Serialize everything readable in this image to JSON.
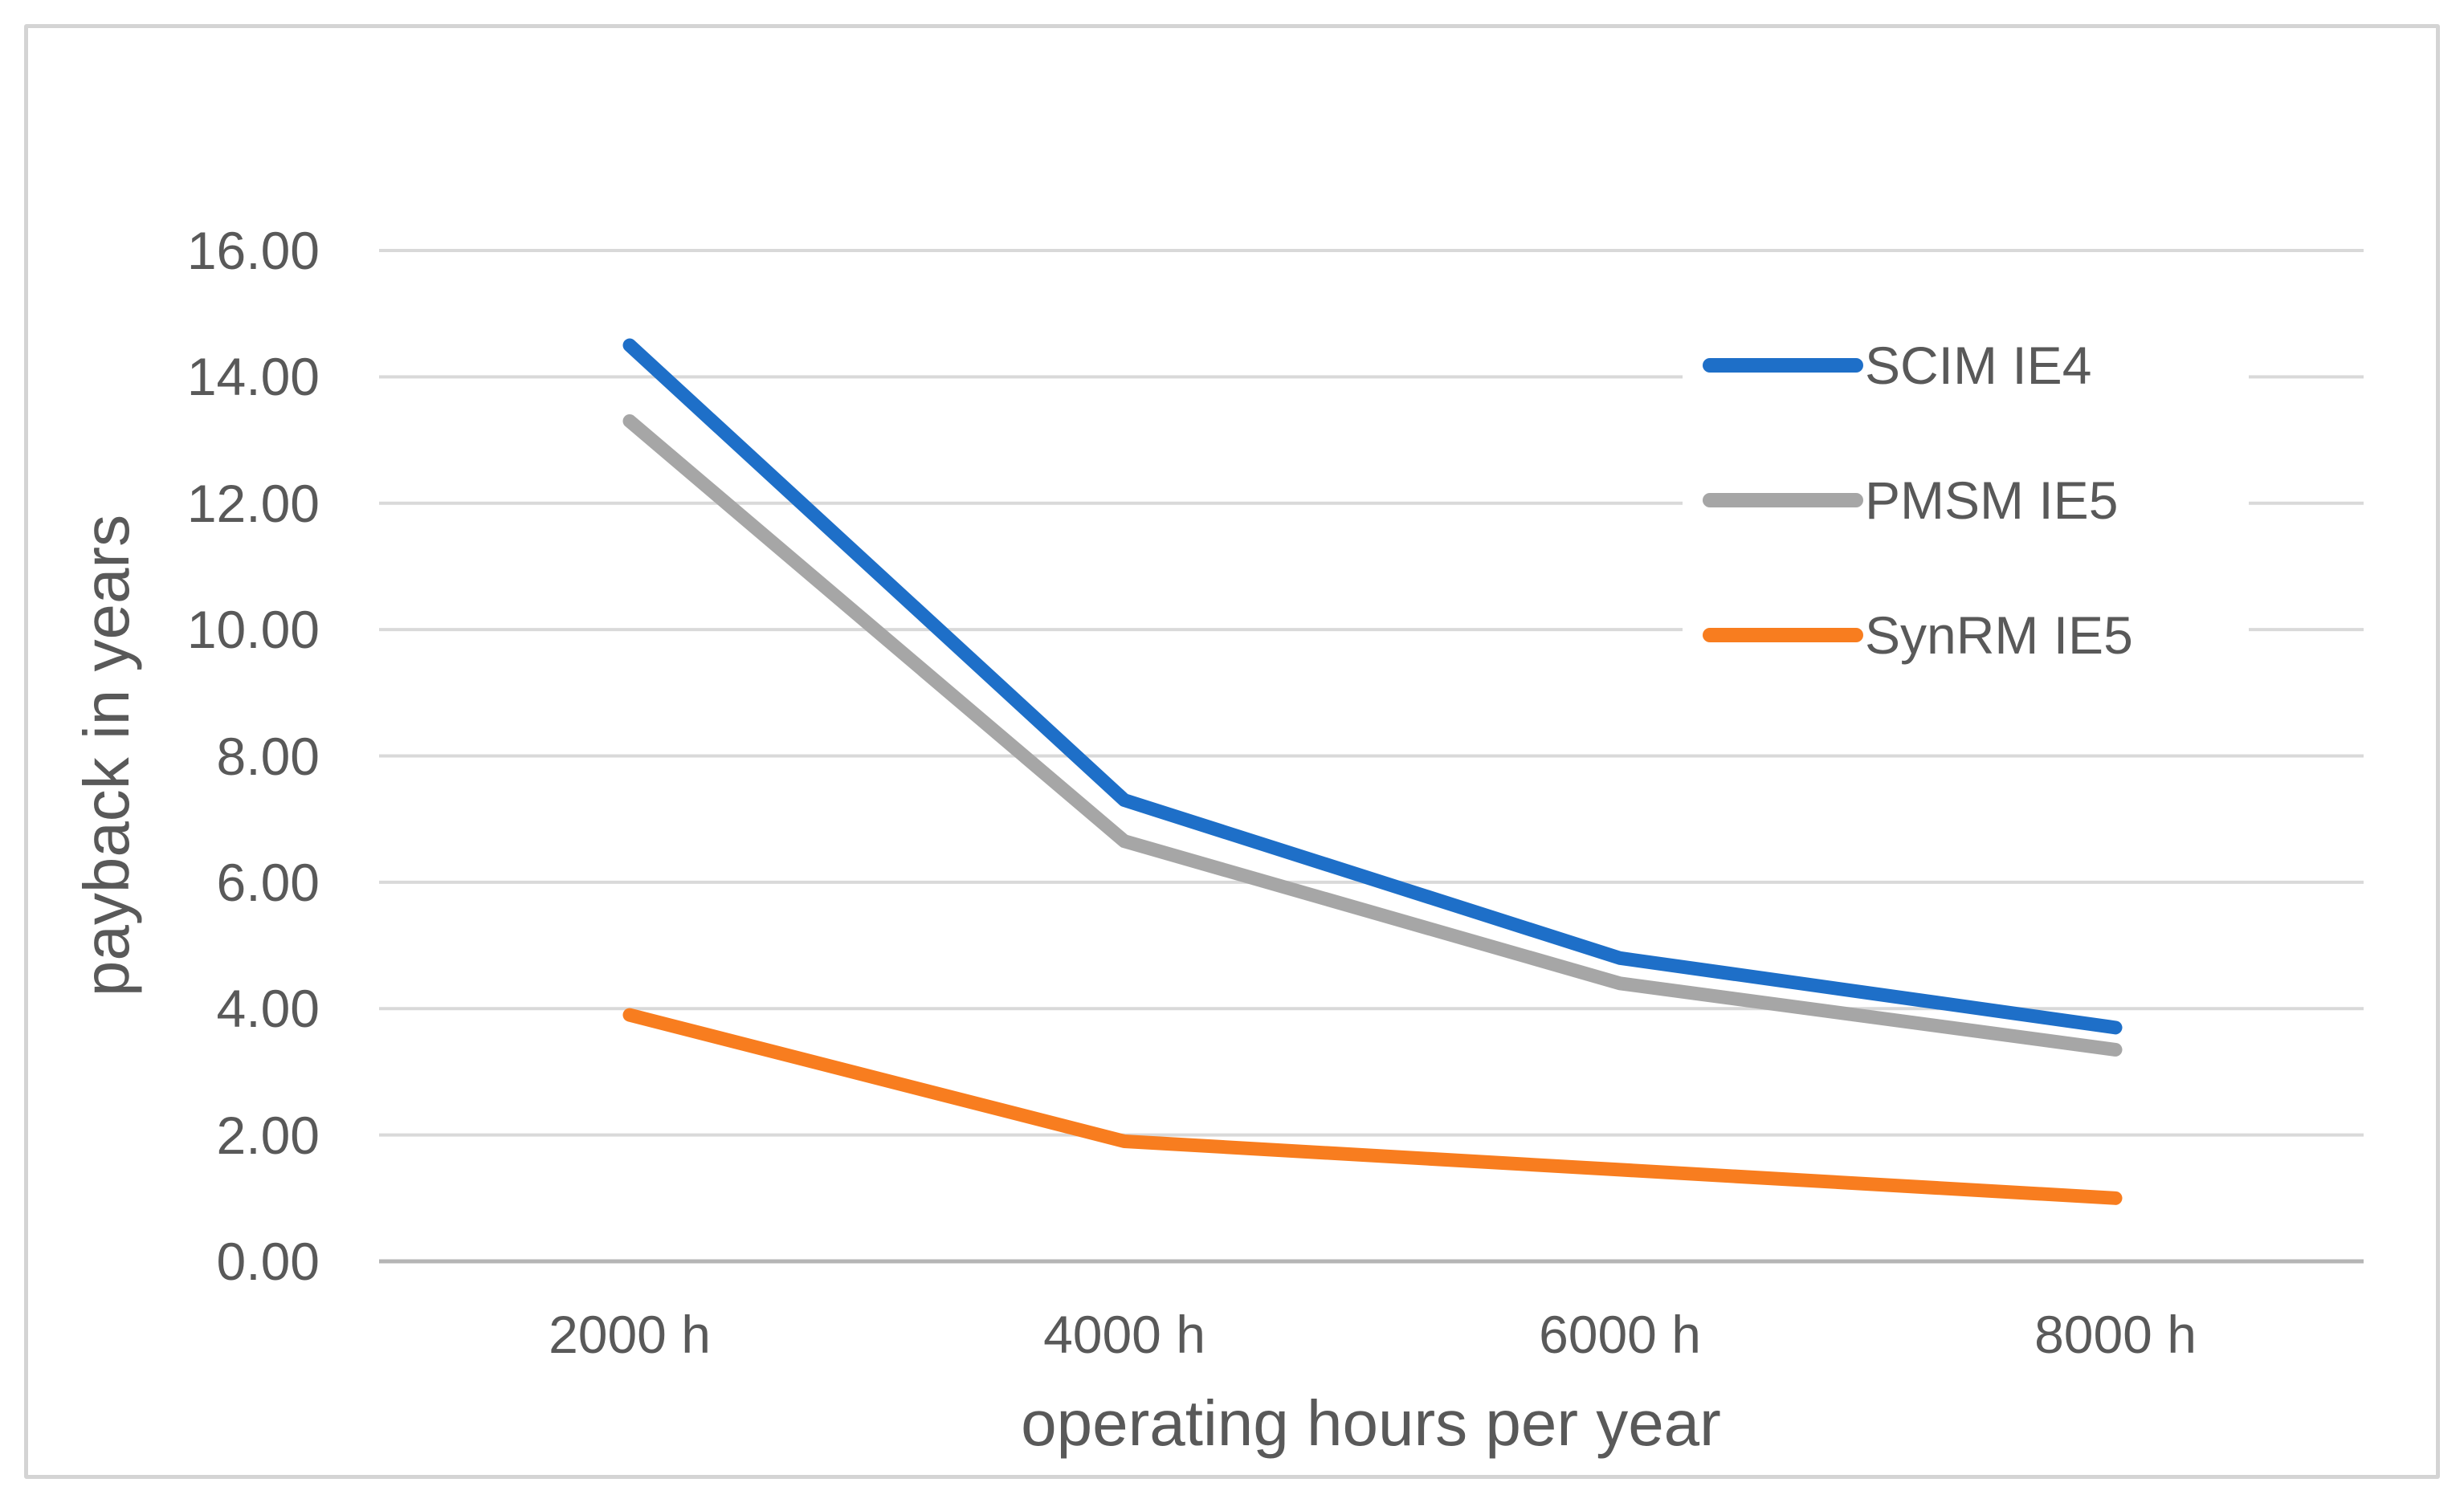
{
  "figure": {
    "background": "#ffffff",
    "border_color": "#d4d4d4"
  },
  "chart_data": {
    "type": "line",
    "title": "",
    "xlabel": "operating hours per year",
    "ylabel": "payback in years",
    "categories": [
      "2000 h",
      "4000 h",
      "6000 h",
      "8000 h"
    ],
    "series": [
      {
        "name": "SCIM IE4",
        "color": "#1e6fc8",
        "values": [
          14.5,
          7.3,
          4.8,
          3.7
        ]
      },
      {
        "name": "PMSM IE5",
        "color": "#a6a6a6",
        "values": [
          13.3,
          6.65,
          4.4,
          3.35
        ]
      },
      {
        "name": "SynRM IE5",
        "color": "#f87d1f",
        "values": [
          3.9,
          1.9,
          1.45,
          1.0
        ]
      }
    ],
    "ylim": [
      0,
      16
    ],
    "y_tick_step": 2,
    "y_tick_labels": [
      "0.00",
      "2.00",
      "4.00",
      "6.00",
      "8.00",
      "10.00",
      "12.00",
      "14.00",
      "16.00"
    ],
    "grid": true,
    "legend_position": "inside-right",
    "gridline_color": "#d9d9d9",
    "axisline_color": "#b5b5b5",
    "legend_background": "#ffffff",
    "text_color": "#595959"
  }
}
